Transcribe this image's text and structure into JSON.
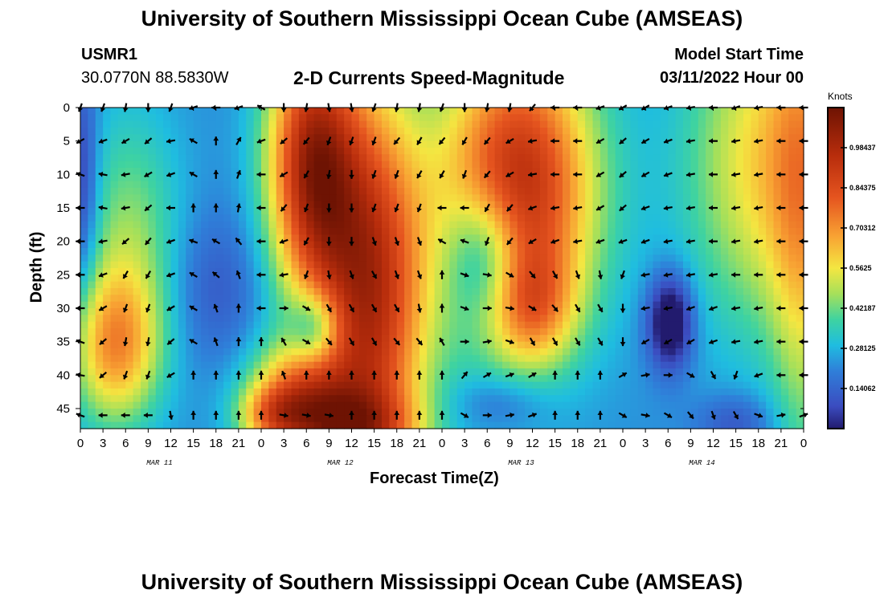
{
  "header": {
    "title": "University of Southern Mississippi Ocean Cube (AMSEAS)",
    "station": "USMR1",
    "coords": "30.0770N  88.5830W",
    "subtitle": "2-D Currents Speed-Magnitude",
    "model_start_label": "Model Start Time",
    "model_start_value": "03/11/2022 Hour 00"
  },
  "footer": {
    "title_repeat": "University of Southern Mississippi Ocean Cube (AMSEAS)"
  },
  "chart_data": {
    "type": "heatmap",
    "title": "2-D Currents Speed-Magnitude",
    "xlabel": "Forecast Time(Z)",
    "ylabel": "Depth (ft)",
    "x_ticks": [
      "0",
      "3",
      "6",
      "9",
      "12",
      "15",
      "18",
      "21",
      "0",
      "3",
      "6",
      "9",
      "12",
      "15",
      "18",
      "21",
      "0",
      "3",
      "6",
      "9",
      "12",
      "15",
      "18",
      "21",
      "0",
      "3",
      "6",
      "9",
      "12",
      "15",
      "18",
      "21",
      "0"
    ],
    "date_labels": [
      "MAR 11",
      "MAR 12",
      "MAR 13",
      "MAR 14"
    ],
    "date_label_tick_index": [
      3.5,
      11.5,
      19.5,
      27.5
    ],
    "ylim": [
      0,
      48
    ],
    "y_ticks": [
      0,
      5,
      10,
      15,
      20,
      25,
      30,
      35,
      40,
      45
    ],
    "colorbar": {
      "units": "Knots",
      "min": 0,
      "max": 1.125,
      "tick_values": [
        0.14062,
        0.28125,
        0.42187,
        0.5625,
        0.70312,
        0.84375,
        0.98437
      ],
      "tick_labels": [
        "0.14062",
        "0.28125",
        "0.42187",
        "0.5625",
        "0.70312",
        "0.84375",
        "0.98437"
      ]
    },
    "vector_depths_ft": [
      0,
      5,
      10,
      15,
      20,
      25,
      30,
      35,
      40,
      46
    ],
    "vector_directions_note": "arrows drawn every 3 forecast hours, unit-length, pointing in current direction",
    "vector_angles_deg": [
      [
        200,
        200,
        190,
        180,
        200,
        250,
        270,
        250,
        300,
        180,
        190,
        170,
        170,
        200,
        190,
        190,
        200,
        180,
        190,
        190,
        220,
        270,
        270,
        250,
        240,
        240,
        250,
        260,
        270,
        250,
        260,
        270,
        270
      ],
      [
        240,
        250,
        240,
        230,
        260,
        300,
        0,
        30,
        250,
        230,
        220,
        200,
        200,
        200,
        220,
        210,
        220,
        210,
        220,
        240,
        260,
        270,
        270,
        240,
        230,
        240,
        250,
        260,
        270,
        260,
        260,
        270,
        270
      ],
      [
        290,
        280,
        260,
        240,
        250,
        300,
        0,
        20,
        270,
        240,
        210,
        190,
        180,
        200,
        200,
        210,
        210,
        200,
        220,
        240,
        260,
        270,
        270,
        240,
        230,
        240,
        250,
        260,
        270,
        260,
        260,
        270,
        270
      ],
      [
        270,
        280,
        260,
        230,
        270,
        0,
        0,
        10,
        270,
        220,
        200,
        180,
        180,
        200,
        200,
        200,
        270,
        270,
        210,
        220,
        250,
        260,
        260,
        240,
        230,
        250,
        260,
        260,
        270,
        260,
        260,
        270,
        270
      ],
      [
        270,
        260,
        230,
        220,
        250,
        290,
        300,
        320,
        270,
        250,
        210,
        180,
        180,
        160,
        160,
        160,
        300,
        290,
        200,
        220,
        240,
        250,
        260,
        250,
        250,
        250,
        260,
        260,
        270,
        260,
        260,
        270,
        270
      ],
      [
        270,
        250,
        210,
        210,
        250,
        300,
        310,
        340,
        270,
        260,
        200,
        170,
        160,
        150,
        160,
        160,
        0,
        110,
        100,
        120,
        140,
        150,
        160,
        170,
        200,
        260,
        260,
        260,
        260,
        270,
        270,
        270,
        270
      ],
      [
        270,
        240,
        200,
        200,
        240,
        300,
        340,
        0,
        270,
        90,
        120,
        150,
        150,
        150,
        150,
        170,
        0,
        110,
        90,
        100,
        120,
        140,
        150,
        150,
        180,
        260,
        260,
        250,
        250,
        260,
        260,
        270,
        270
      ],
      [
        290,
        230,
        190,
        190,
        230,
        300,
        340,
        0,
        0,
        330,
        120,
        140,
        150,
        150,
        140,
        140,
        330,
        90,
        80,
        110,
        150,
        150,
        150,
        150,
        180,
        240,
        240,
        240,
        250,
        260,
        260,
        270,
        270
      ],
      [
        280,
        230,
        200,
        200,
        240,
        0,
        0,
        0,
        0,
        340,
        0,
        0,
        0,
        0,
        0,
        0,
        0,
        40,
        60,
        70,
        60,
        0,
        0,
        0,
        60,
        80,
        90,
        120,
        150,
        200,
        250,
        270,
        270
      ],
      [
        290,
        270,
        270,
        270,
        170,
        0,
        0,
        0,
        0,
        100,
        100,
        100,
        0,
        0,
        0,
        0,
        0,
        120,
        90,
        80,
        70,
        0,
        0,
        0,
        120,
        100,
        120,
        140,
        160,
        150,
        110,
        80,
        70
      ]
    ]
  }
}
